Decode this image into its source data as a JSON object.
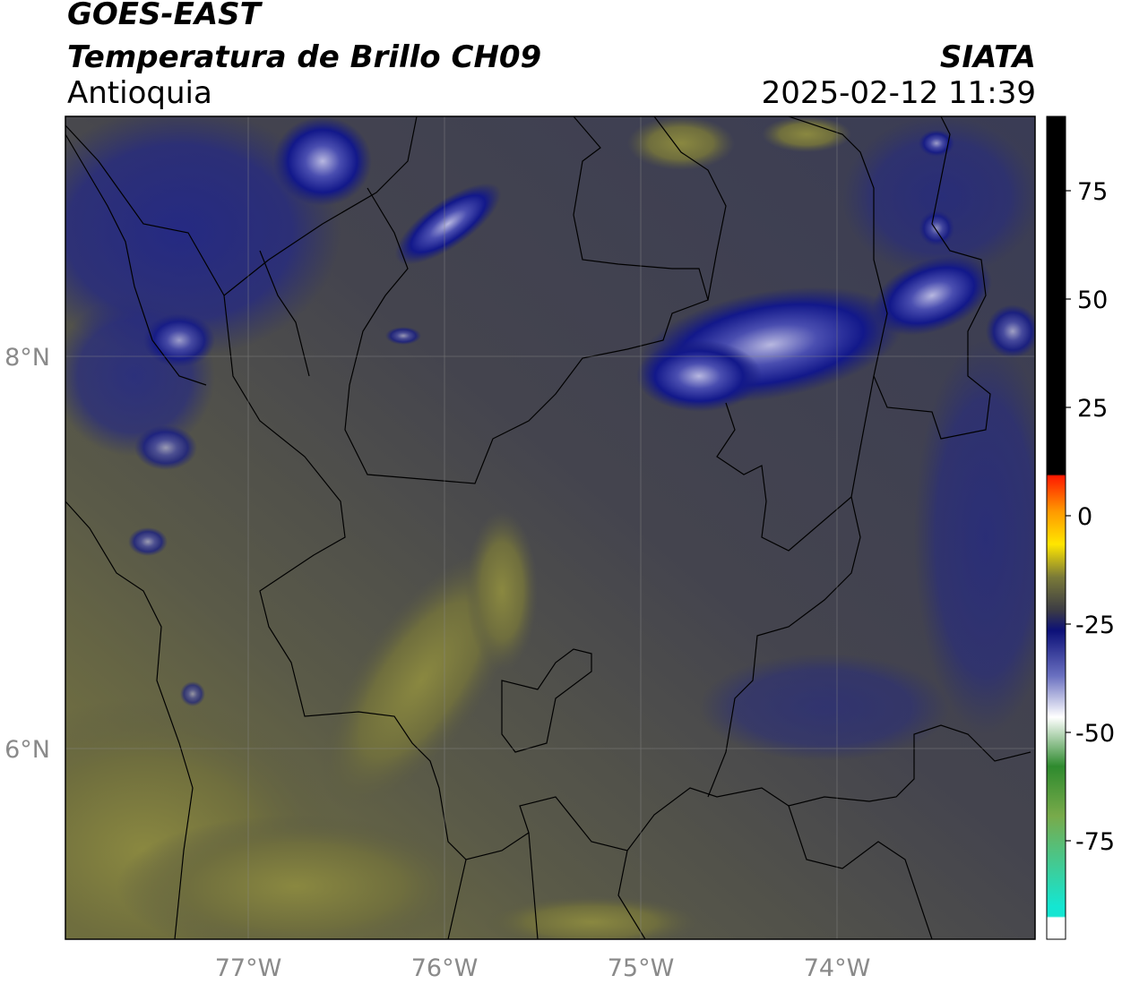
{
  "header": {
    "satellite": "GOES-EAST",
    "product": "Temperatura de Brillo CH09",
    "region": "Antioquia",
    "agency": "SIATA",
    "datetime": "2025-02-12 11:39"
  },
  "map": {
    "lon_ticks": [
      {
        "value": -77,
        "label": "77°W"
      },
      {
        "value": -76,
        "label": "76°W"
      },
      {
        "value": -75,
        "label": "75°W"
      },
      {
        "value": -74,
        "label": "74°W"
      }
    ],
    "lat_ticks": [
      {
        "value": 8,
        "label": "8°N"
      },
      {
        "value": 6,
        "label": "6°N"
      }
    ],
    "lon_range": [
      -77.93,
      -73.0
    ],
    "lat_range": [
      5.0,
      9.2
    ]
  },
  "colorbar": {
    "range": [
      -95,
      91
    ],
    "ticks": [
      {
        "value": 75,
        "label": "75"
      },
      {
        "value": 50,
        "label": "50"
      },
      {
        "value": 25,
        "label": "25"
      },
      {
        "value": 0,
        "label": "0"
      },
      {
        "value": -25,
        "label": "-25"
      },
      {
        "value": -50,
        "label": "-50"
      },
      {
        "value": -75,
        "label": "-75"
      }
    ],
    "colors": {
      "black": "#000000",
      "red": "#ff1a00",
      "orange": "#ff9900",
      "yellow": "#ffe600",
      "olive": "#7a7a38",
      "gray": "#3c3c44",
      "navy": "#0c1078",
      "white": "#ffffff",
      "green": "#2e8a2e",
      "cyan": "#14e6d2"
    }
  }
}
